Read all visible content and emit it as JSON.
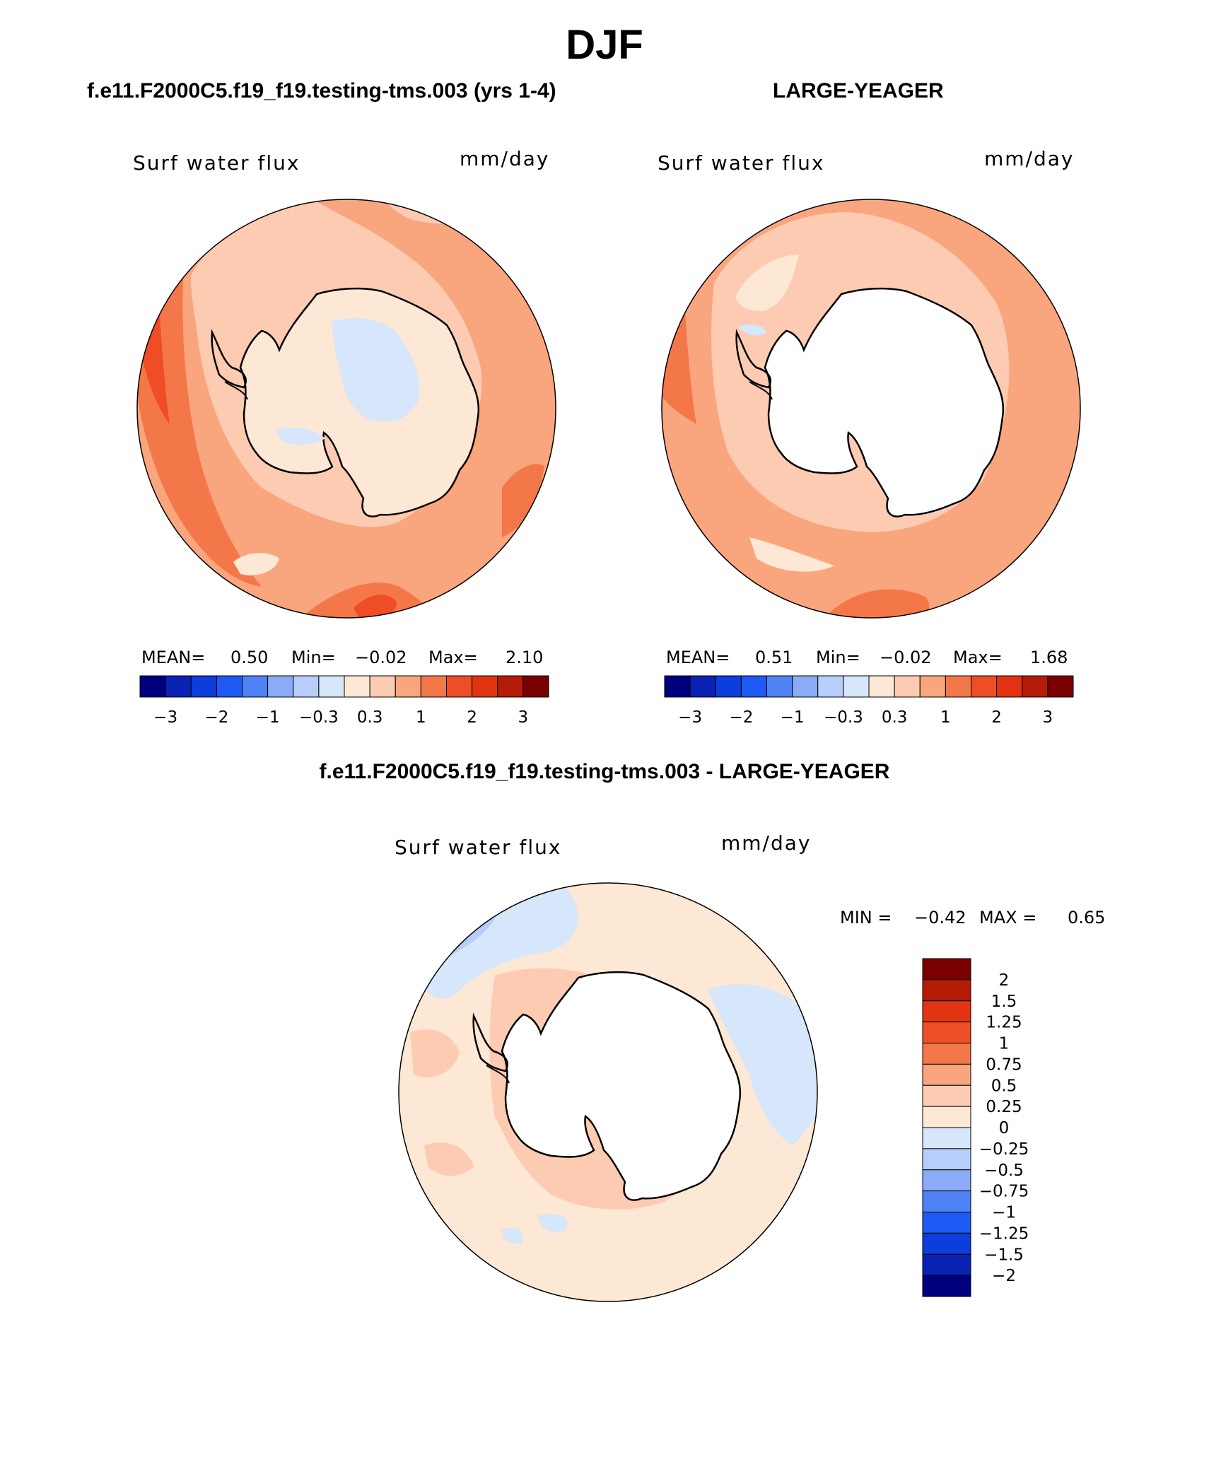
{
  "figure": {
    "title": "DJF",
    "case1_title": "f.e11.F2000C5.f19_f19.testing-tms.003 (yrs 1-4)",
    "case2_title": "LARGE-YEAGER",
    "diff_title": "f.e11.F2000C5.f19_f19.testing-tms.003 - LARGE-YEAGER"
  },
  "panels": [
    {
      "variable": "Surf water flux",
      "units": "mm/day",
      "stats": {
        "mean_label": "MEAN=",
        "mean": "0.50",
        "min_label": "Min=",
        "min": "−0.02",
        "max_label": "Max=",
        "max": "2.10"
      },
      "antarctica_filled": true
    },
    {
      "variable": "Surf water flux",
      "units": "mm/day",
      "stats": {
        "mean_label": "MEAN=",
        "mean": "0.51",
        "min_label": "Min=",
        "min": "−0.02",
        "max_label": "Max=",
        "max": "1.68"
      },
      "antarctica_filled": false
    },
    {
      "variable": "Surf water flux",
      "units": "mm/day",
      "stats": {
        "min_label": "MIN =",
        "min": "−0.42",
        "max_label": "MAX =",
        "max": "0.65"
      }
    }
  ],
  "colorbar_main": {
    "colors": [
      "#00007f",
      "#0a22b4",
      "#0d3ddd",
      "#1f5af5",
      "#4f82f4",
      "#8aabf5",
      "#b7cefb",
      "#d6e6fb",
      "#fde7d5",
      "#fdcbb2",
      "#f9a57e",
      "#f4774a",
      "#ef4d26",
      "#e23412",
      "#b51c07",
      "#7a0000"
    ],
    "tick_labels": [
      "−3",
      "−2",
      "−1",
      "−0.3",
      "0.3",
      "1",
      "2",
      "3"
    ]
  },
  "colorbar_diff": {
    "colors": [
      "#7a0000",
      "#b51c07",
      "#e23412",
      "#ef4d26",
      "#f4774a",
      "#f9a57e",
      "#fdcbb2",
      "#fde7d5",
      "#d6e6fb",
      "#b7cefb",
      "#8aabf5",
      "#4f82f4",
      "#1f5af5",
      "#0d3ddd",
      "#0a22b4",
      "#00007f"
    ],
    "tick_labels": [
      "2",
      "1.5",
      "1.25",
      "1",
      "0.75",
      "0.5",
      "0.25",
      "0",
      "−0.25",
      "−0.5",
      "−0.75",
      "−1",
      "−1.25",
      "−1.5",
      "−2"
    ]
  }
}
